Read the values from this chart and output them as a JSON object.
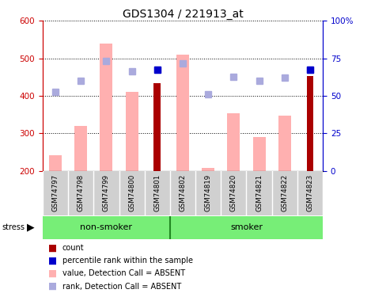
{
  "title": "GDS1304 / 221913_at",
  "samples": [
    "GSM74797",
    "GSM74798",
    "GSM74799",
    "GSM74800",
    "GSM74801",
    "GSM74802",
    "GSM74819",
    "GSM74820",
    "GSM74821",
    "GSM74822",
    "GSM74823"
  ],
  "pink_values": [
    242,
    320,
    540,
    410,
    null,
    510,
    208,
    353,
    290,
    347,
    null
  ],
  "dark_red_values": [
    null,
    null,
    null,
    null,
    433,
    null,
    null,
    null,
    null,
    null,
    452
  ],
  "blue_sq_values": [
    410,
    440,
    492,
    465,
    470,
    487,
    405,
    450,
    440,
    448,
    470
  ],
  "dark_blue_sq_values": [
    null,
    null,
    null,
    null,
    470,
    null,
    null,
    null,
    null,
    null,
    470
  ],
  "ylim_left": [
    200,
    600
  ],
  "ylim_right": [
    0,
    100
  ],
  "yticks_left": [
    200,
    300,
    400,
    500,
    600
  ],
  "yticks_right": [
    0,
    25,
    50,
    75,
    100
  ],
  "ytick_labels_right": [
    "0",
    "25",
    "50",
    "75",
    "100%"
  ],
  "bar_bottom": 200,
  "left_axis_color": "#cc0000",
  "right_axis_color": "#0000cc",
  "pink_color": "#ffb0b0",
  "dark_red_color": "#aa0000",
  "blue_sq_color": "#aaaadd",
  "dark_blue_sq_color": "#0000cc",
  "bg_plot": "#ffffff",
  "bg_label": "#d0d0d0",
  "bg_group": "#77ee77",
  "grid_color": "#000000",
  "group_split": 4,
  "legend_items": [
    {
      "label": "count",
      "color": "#aa0000"
    },
    {
      "label": "percentile rank within the sample",
      "color": "#0000cc"
    },
    {
      "label": "value, Detection Call = ABSENT",
      "color": "#ffb0b0"
    },
    {
      "label": "rank, Detection Call = ABSENT",
      "color": "#aaaadd"
    }
  ]
}
